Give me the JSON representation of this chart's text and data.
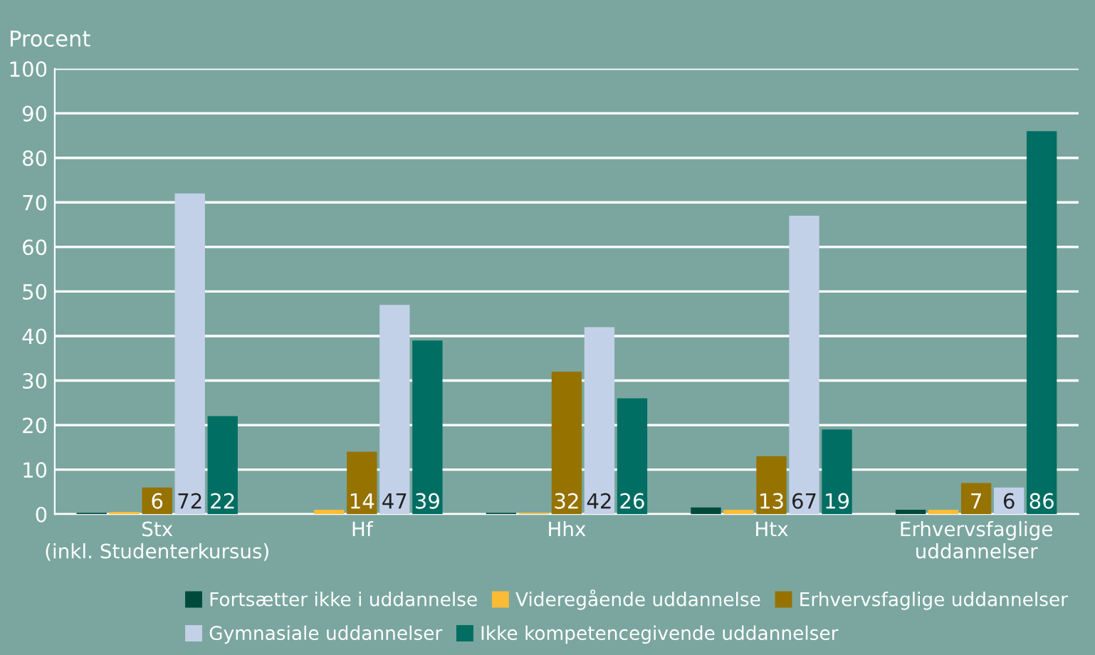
{
  "chart_data": {
    "type": "bar",
    "ylabel": "Procent",
    "categories": [
      "Stx\n(inkl. Studenterkursus)",
      "Hf",
      "Hhx",
      "Htx",
      "Erhvervsfaglige\nuddannelser"
    ],
    "series": [
      {
        "name": "Fortsætter ikke i uddannelse",
        "color": "#004a3c",
        "values": [
          0.3,
          0,
          0.3,
          1.5,
          1
        ]
      },
      {
        "name": "Videregående uddannelse",
        "color": "#fbbb35",
        "values": [
          0.5,
          1,
          0.3,
          1,
          1
        ]
      },
      {
        "name": "Erhvervsfaglige uddannelser",
        "color": "#967200",
        "values": [
          6,
          14,
          32,
          13,
          7
        ],
        "value_labels": [
          "6",
          "14",
          "32",
          "13",
          "7"
        ]
      },
      {
        "name": "Gymnasiale uddannelser",
        "color": "#c3d1e8",
        "values": [
          72,
          47,
          42,
          67,
          6
        ],
        "value_labels": [
          "72",
          "47",
          "42",
          "67",
          "6"
        ]
      },
      {
        "name": "Ikke kompetencegivende uddannelser",
        "color": "#006e63",
        "values": [
          22,
          39,
          26,
          19,
          86
        ],
        "value_labels": [
          "22",
          "39",
          "26",
          "19",
          "86"
        ]
      }
    ],
    "ylim": [
      0,
      100
    ],
    "yticks": [
      0,
      10,
      20,
      30,
      40,
      50,
      60,
      70,
      80,
      90,
      100
    ],
    "grid": "y",
    "legend": "bottom"
  }
}
